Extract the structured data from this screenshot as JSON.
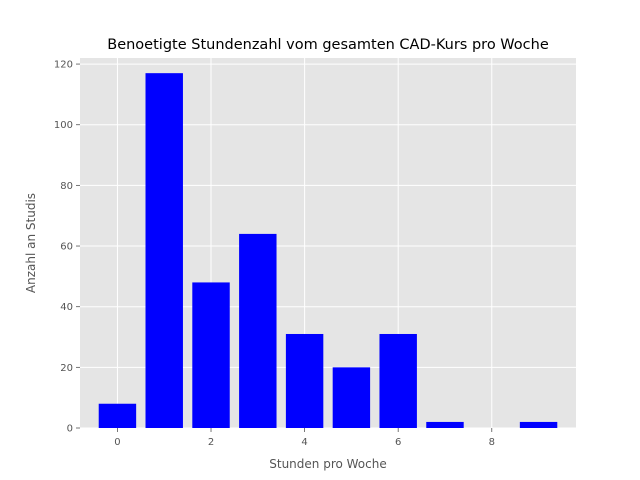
{
  "chart_data": {
    "type": "bar",
    "title": "Benoetigte Stundenzahl vom gesamten CAD-Kurs pro Woche",
    "xlabel": "Stunden pro Woche",
    "ylabel": "Anzahl an Studis",
    "x": [
      0,
      1,
      2,
      3,
      4,
      5,
      6,
      7,
      8,
      9
    ],
    "values": [
      8,
      117,
      48,
      64,
      31,
      20,
      31,
      2,
      0,
      2
    ],
    "xlim": [
      -0.8,
      9.8
    ],
    "ylim": [
      0,
      122
    ],
    "xticks": [
      0,
      2,
      4,
      6,
      8
    ],
    "yticks": [
      0,
      20,
      40,
      60,
      80,
      100,
      120
    ],
    "bar_color": "#0000ff",
    "background_color": "#e5e5e5",
    "grid": true,
    "style": "ggplot"
  }
}
